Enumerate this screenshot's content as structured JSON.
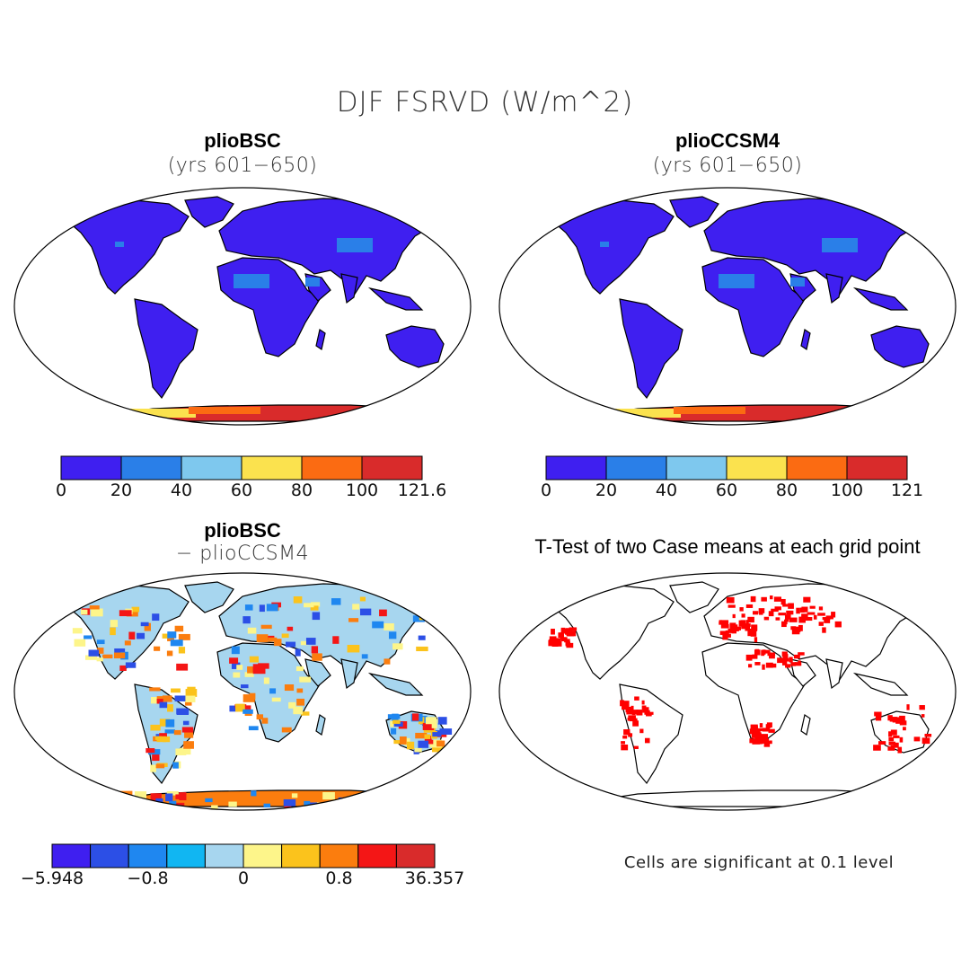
{
  "title": "DJF FSRVD (W/m^2)",
  "panels": [
    {
      "title": "plioBSC",
      "subtitle": "(yrs 601−650)"
    },
    {
      "title": "plioCCSM4",
      "subtitle": "(yrs 601−650)"
    },
    {
      "title": "plioBSC",
      "subtitle": "− plioCCSM4"
    },
    {
      "title": "T-Test of two Case means at each grid point",
      "note": "Cells are significant at 0.1 level"
    }
  ],
  "colorbars": [
    {
      "ticks": [
        "0",
        "20",
        "40",
        "60",
        "80",
        "100",
        "121.6"
      ],
      "colors": [
        "#3f1ff0",
        "#2a7fe8",
        "#7ec8ee",
        "#fbe24e",
        "#fb6b12",
        "#d92b2b"
      ]
    },
    {
      "ticks": [
        "0",
        "20",
        "40",
        "60",
        "80",
        "100",
        "121"
      ],
      "colors": [
        "#3f1ff0",
        "#2a7fe8",
        "#7ec8ee",
        "#fbe24e",
        "#fb6b12",
        "#d92b2b"
      ]
    },
    {
      "ticks": [
        "−5.948",
        "−0.8",
        "0",
        "0.8",
        "36.357"
      ],
      "colors": [
        "#3f1ff0",
        "#2c4fe6",
        "#1f87f0",
        "#11b6f2",
        "#a7d6ef",
        "#fdf58a",
        "#fbc31c",
        "#fb7d0e",
        "#f41616",
        "#d92b2b"
      ]
    }
  ],
  "colors": {
    "land": "#3f1ff0",
    "significant": "#ff0000",
    "diff_base": "#a7d6ef"
  }
}
